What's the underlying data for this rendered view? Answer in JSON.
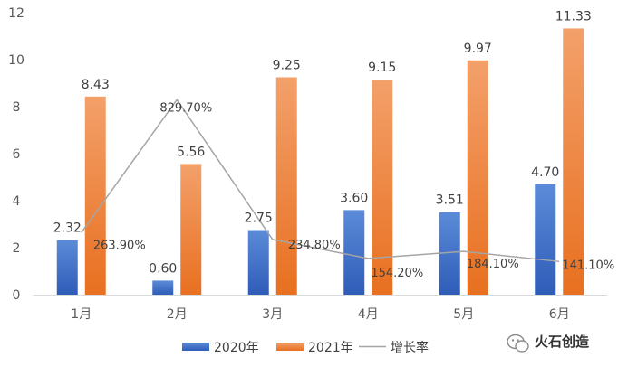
{
  "chart_data": {
    "type": "bar",
    "categories": [
      "1月",
      "2月",
      "3月",
      "4月",
      "5月",
      "6月"
    ],
    "series": [
      {
        "name": "2020年",
        "type": "bar",
        "color": "#4472C4",
        "values": [
          2.32,
          0.6,
          2.75,
          3.6,
          3.51,
          4.7
        ],
        "labels": [
          "2.32",
          "0.60",
          "2.75",
          "3.60",
          "3.51",
          "4.70"
        ]
      },
      {
        "name": "2021年",
        "type": "bar",
        "color": "#ED7D31",
        "values": [
          8.43,
          5.56,
          9.25,
          9.15,
          9.97,
          11.33
        ],
        "labels": [
          "8.43",
          "5.56",
          "9.25",
          "9.15",
          "9.97",
          "11.33"
        ]
      },
      {
        "name": "增长率",
        "type": "line",
        "color": "#A5A5A5",
        "values": [
          263.9,
          829.7,
          234.8,
          154.2,
          184.1,
          141.1
        ],
        "labels": [
          "263.90%",
          "829.70%",
          "234.80%",
          "154.20%",
          "184.10%",
          "141.10%"
        ]
      }
    ],
    "yticks": [
      "0",
      "2",
      "4",
      "6",
      "8",
      "10",
      "12"
    ],
    "ylim": [
      0,
      12
    ],
    "y2lim": [
      0,
      1200
    ],
    "grid": false,
    "legend_position": "bottom"
  },
  "watermark": {
    "text": "火石创造"
  }
}
